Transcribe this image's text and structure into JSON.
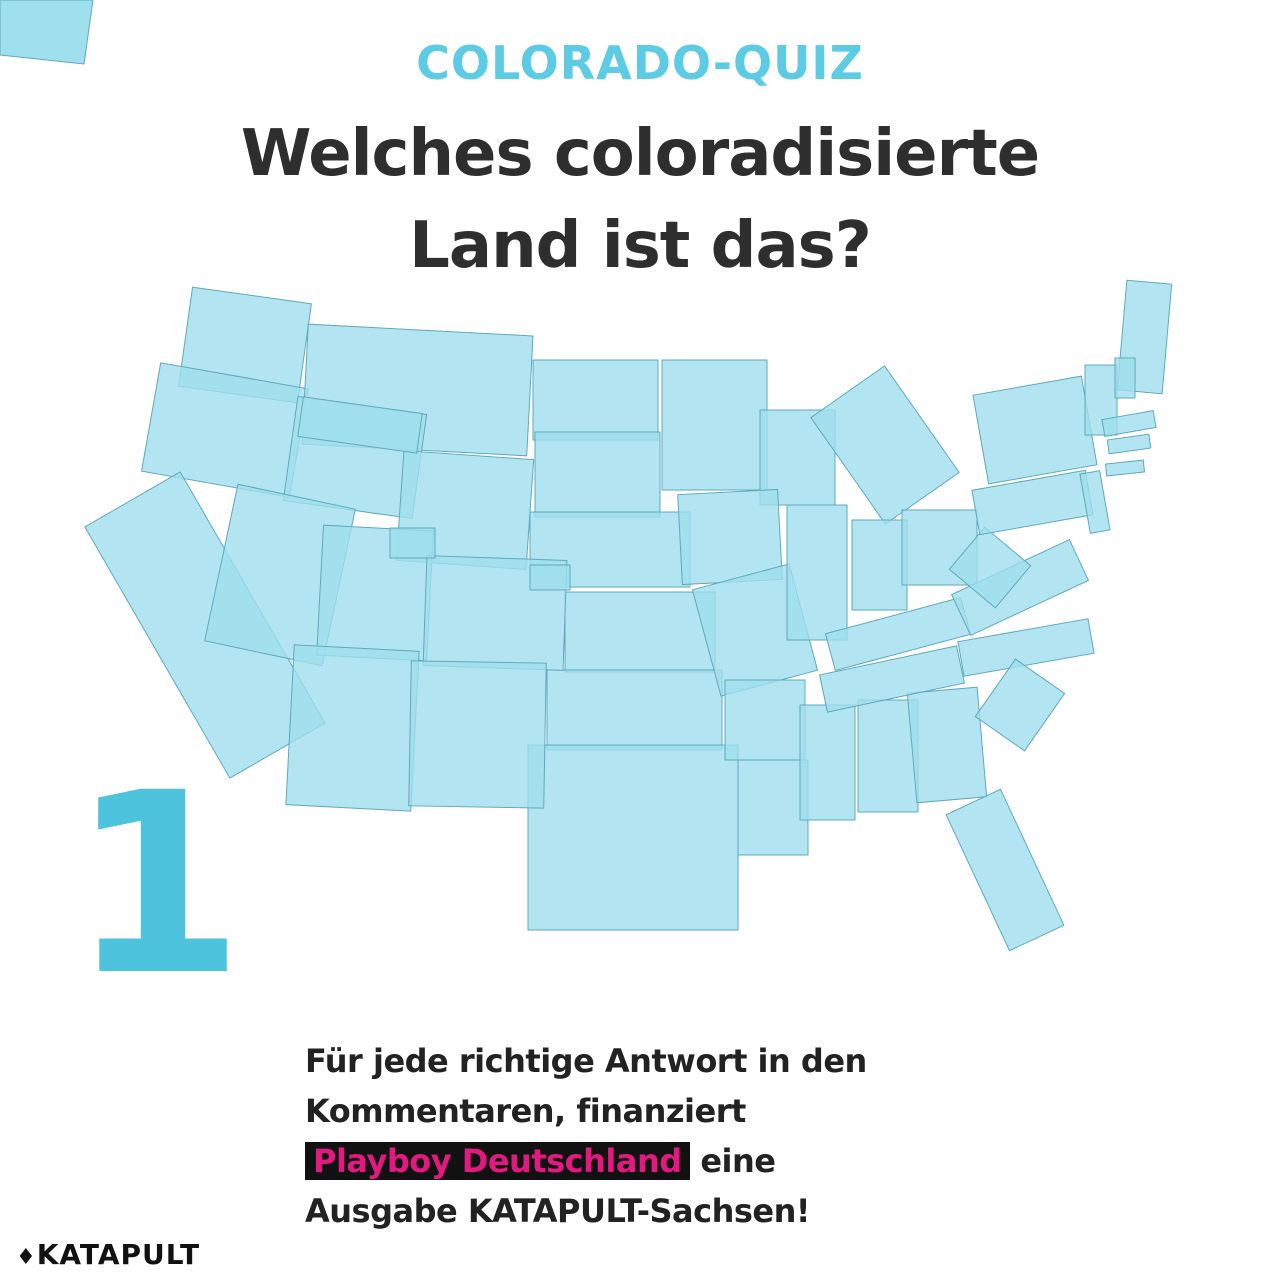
{
  "header": {
    "kicker": "COLORADO-QUIZ",
    "title_lines": [
      "Welches coloradisierte",
      "Land ist das?"
    ]
  },
  "quiz_number": "1",
  "body": {
    "line1": "Für jede richtige Antwort in den",
    "line2": "Kommentaren, finanziert",
    "highlight": "Playboy Deutschland",
    "line3_rest": "eine",
    "line4": "Ausgabe KATAPULT-Sachsen!"
  },
  "brand": "KATAPULT"
}
